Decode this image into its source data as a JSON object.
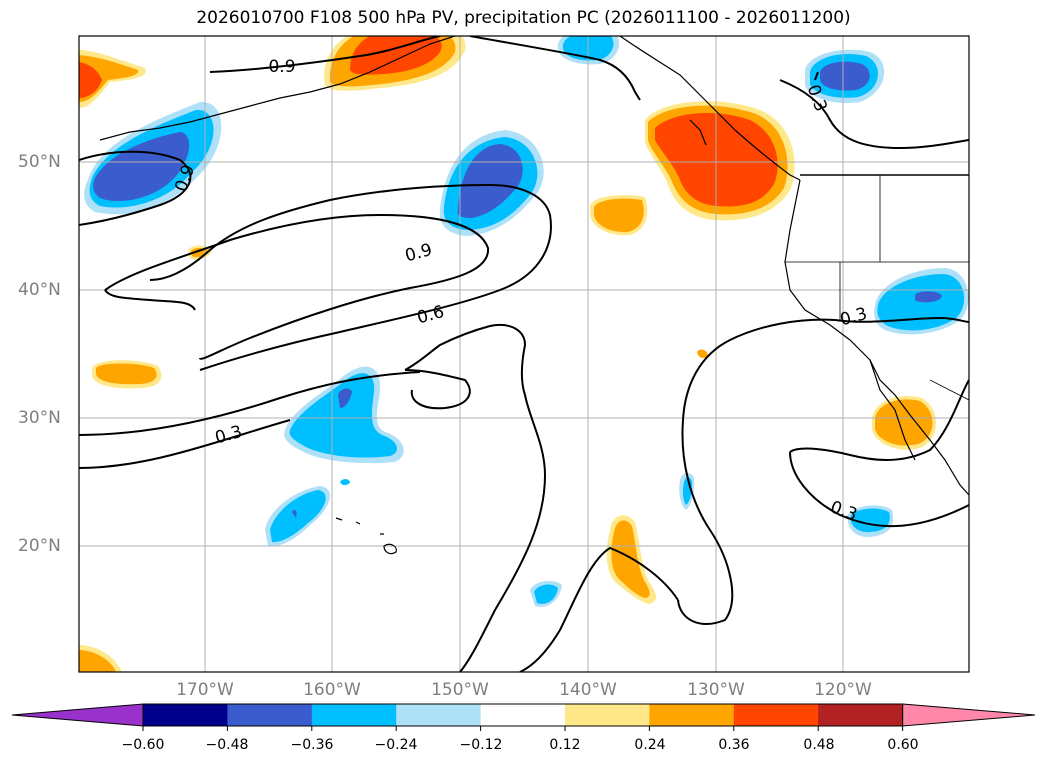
{
  "title": "2026010700 F108 500 hPa PV, precipitation PC (2026011100 - 2026011200)",
  "map": {
    "lat_labels": [
      "50°N",
      "40°N",
      "30°N",
      "20°N"
    ],
    "lon_labels": [
      "170°W",
      "160°W",
      "150°W",
      "140°W",
      "130°W",
      "120°W"
    ],
    "contour_labels": [
      "0.9",
      "0.9",
      "0.9",
      "0.6",
      "0.3",
      "0.3",
      "0.3",
      "0.3",
      "0.3"
    ]
  },
  "colorbar": {
    "ticks": [
      "−0.60",
      "−0.48",
      "−0.36",
      "−0.24",
      "−0.12",
      "0.12",
      "0.24",
      "0.36",
      "0.48",
      "0.60"
    ],
    "colors": [
      "#9932cc",
      "#00008b",
      "#3a5ccc",
      "#00bfff",
      "#aee0f8",
      "#ffffff",
      "#ffe88a",
      "#ffa500",
      "#ff4500",
      "#b22222",
      "#ff88aa"
    ]
  }
}
